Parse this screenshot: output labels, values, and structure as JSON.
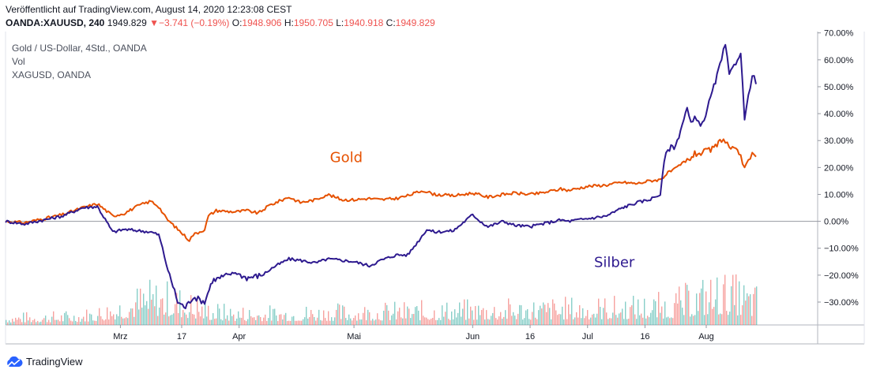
{
  "header": {
    "published": "Veröffentlicht auf TradingView.com, August 14, 2020 12:23:08 CEST",
    "symbol": "OANDA:XAUUSD, 240",
    "last": "1949.829",
    "change": "−3.741 (−0.19%)",
    "o_label": "O:",
    "o_value": "1948.906",
    "h_label": "H:",
    "h_value": "1950.705",
    "l_label": "L:",
    "l_value": "1940.918",
    "c_label": "C:",
    "c_value": "1949.829",
    "change_direction": "down",
    "down_color": "#ef5350"
  },
  "legend": {
    "line1": "Gold  / US-Dollar, 4Std., OANDA",
    "line2": "Vol",
    "line3": "XAGUSD, OANDA"
  },
  "branding": {
    "name": "TradingView",
    "logo_icon": "tradingview-cloud-icon",
    "color": "#2962ff"
  },
  "chart_data": {
    "type": "line",
    "y_unit": "%",
    "ylim": [
      -38.5,
      70.5
    ],
    "y_ticks": [
      "70.00%",
      "60.00%",
      "50.00%",
      "40.00%",
      "30.00%",
      "20.00%",
      "10.00%",
      "0.00%",
      "−10.00%",
      "−20.00%",
      "−30.00%"
    ],
    "y_tick_values": [
      70,
      60,
      50,
      40,
      30,
      20,
      10,
      0,
      -10,
      -20,
      -30
    ],
    "x_range": [
      "2020-01-31",
      "2020-08-14"
    ],
    "x_ticks": [
      {
        "label": "Mrz",
        "date": "2020-03-01"
      },
      {
        "label": "17",
        "date": "2020-03-17"
      },
      {
        "label": "Apr",
        "date": "2020-04-01"
      },
      {
        "label": "Mai",
        "date": "2020-05-01"
      },
      {
        "label": "Jun",
        "date": "2020-06-01"
      },
      {
        "label": "16",
        "date": "2020-06-16"
      },
      {
        "label": "Jul",
        "date": "2020-07-01"
      },
      {
        "label": "16",
        "date": "2020-07-16"
      },
      {
        "label": "Aug",
        "date": "2020-08-01"
      }
    ],
    "grid": false,
    "zero_line": true,
    "series": [
      {
        "name": "Gold",
        "color": "#e65100",
        "points": [
          [
            "2020-01-31",
            0
          ],
          [
            "2020-02-05",
            -0.5
          ],
          [
            "2020-02-10",
            1
          ],
          [
            "2020-02-15",
            2.5
          ],
          [
            "2020-02-20",
            5
          ],
          [
            "2020-02-24",
            6.5
          ],
          [
            "2020-02-28",
            2
          ],
          [
            "2020-03-02",
            3
          ],
          [
            "2020-03-06",
            6
          ],
          [
            "2020-03-09",
            7.5
          ],
          [
            "2020-03-11",
            5.5
          ],
          [
            "2020-03-13",
            1
          ],
          [
            "2020-03-16",
            -3
          ],
          [
            "2020-03-19",
            -7
          ],
          [
            "2020-03-20",
            -5
          ],
          [
            "2020-03-23",
            -3
          ],
          [
            "2020-03-24",
            2
          ],
          [
            "2020-03-26",
            4
          ],
          [
            "2020-03-31",
            3.5
          ],
          [
            "2020-04-03",
            4
          ],
          [
            "2020-04-06",
            3
          ],
          [
            "2020-04-09",
            6
          ],
          [
            "2020-04-14",
            9
          ],
          [
            "2020-04-17",
            7
          ],
          [
            "2020-04-21",
            8
          ],
          [
            "2020-04-24",
            10
          ],
          [
            "2020-04-28",
            8
          ],
          [
            "2020-05-01",
            8
          ],
          [
            "2020-05-05",
            8.5
          ],
          [
            "2020-05-08",
            8
          ],
          [
            "2020-05-12",
            8.5
          ],
          [
            "2020-05-15",
            9.5
          ],
          [
            "2020-05-19",
            11.5
          ],
          [
            "2020-05-22",
            10
          ],
          [
            "2020-05-27",
            9.5
          ],
          [
            "2020-06-01",
            10.5
          ],
          [
            "2020-06-05",
            9
          ],
          [
            "2020-06-09",
            10
          ],
          [
            "2020-06-12",
            10.5
          ],
          [
            "2020-06-16",
            10
          ],
          [
            "2020-06-19",
            10.5
          ],
          [
            "2020-06-24",
            12
          ],
          [
            "2020-06-26",
            11.5
          ],
          [
            "2020-07-01",
            13
          ],
          [
            "2020-07-06",
            13.5
          ],
          [
            "2020-07-10",
            14.5
          ],
          [
            "2020-07-14",
            14
          ],
          [
            "2020-07-17",
            15
          ],
          [
            "2020-07-20",
            15.5
          ],
          [
            "2020-07-22",
            18
          ],
          [
            "2020-07-24",
            19.5
          ],
          [
            "2020-07-27",
            22.5
          ],
          [
            "2020-07-29",
            25
          ],
          [
            "2020-07-31",
            25.5
          ],
          [
            "2020-08-03",
            27
          ],
          [
            "2020-08-05",
            30.5
          ],
          [
            "2020-08-06",
            30
          ],
          [
            "2020-08-07",
            27.5
          ],
          [
            "2020-08-10",
            25
          ],
          [
            "2020-08-11",
            19.5
          ],
          [
            "2020-08-12",
            22
          ],
          [
            "2020-08-13",
            24.5
          ],
          [
            "2020-08-14",
            24
          ]
        ]
      },
      {
        "name": "Silber",
        "color": "#2e1a8f",
        "points": [
          [
            "2020-01-31",
            0
          ],
          [
            "2020-02-05",
            -1
          ],
          [
            "2020-02-10",
            0.5
          ],
          [
            "2020-02-15",
            2
          ],
          [
            "2020-02-20",
            5
          ],
          [
            "2020-02-24",
            5.5
          ],
          [
            "2020-02-28",
            -4
          ],
          [
            "2020-03-02",
            -3
          ],
          [
            "2020-03-06",
            -3.5
          ],
          [
            "2020-03-09",
            -4
          ],
          [
            "2020-03-11",
            -5
          ],
          [
            "2020-03-12",
            -10
          ],
          [
            "2020-03-13",
            -16
          ],
          [
            "2020-03-16",
            -30
          ],
          [
            "2020-03-18",
            -32
          ],
          [
            "2020-03-20",
            -28
          ],
          [
            "2020-03-23",
            -30
          ],
          [
            "2020-03-25",
            -22
          ],
          [
            "2020-03-31",
            -19
          ],
          [
            "2020-04-03",
            -21
          ],
          [
            "2020-04-07",
            -20
          ],
          [
            "2020-04-10",
            -17
          ],
          [
            "2020-04-14",
            -14
          ],
          [
            "2020-04-17",
            -14.5
          ],
          [
            "2020-04-21",
            -15.5
          ],
          [
            "2020-04-24",
            -14
          ],
          [
            "2020-04-28",
            -14.5
          ],
          [
            "2020-05-01",
            -15
          ],
          [
            "2020-05-05",
            -16.5
          ],
          [
            "2020-05-08",
            -14.5
          ],
          [
            "2020-05-12",
            -12.5
          ],
          [
            "2020-05-15",
            -12.5
          ],
          [
            "2020-05-18",
            -7
          ],
          [
            "2020-05-20",
            -3
          ],
          [
            "2020-05-22",
            -4
          ],
          [
            "2020-05-27",
            -3.5
          ],
          [
            "2020-06-01",
            2.5
          ],
          [
            "2020-06-03",
            0
          ],
          [
            "2020-06-05",
            -2
          ],
          [
            "2020-06-09",
            0
          ],
          [
            "2020-06-12",
            -1.5
          ],
          [
            "2020-06-16",
            -2
          ],
          [
            "2020-06-19",
            -1
          ],
          [
            "2020-06-24",
            0.5
          ],
          [
            "2020-06-26",
            0
          ],
          [
            "2020-07-01",
            1
          ],
          [
            "2020-07-06",
            2
          ],
          [
            "2020-07-10",
            5
          ],
          [
            "2020-07-14",
            7
          ],
          [
            "2020-07-17",
            8
          ],
          [
            "2020-07-20",
            10
          ],
          [
            "2020-07-21",
            22
          ],
          [
            "2020-07-22",
            27
          ],
          [
            "2020-07-24",
            28
          ],
          [
            "2020-07-27",
            42
          ],
          [
            "2020-07-28",
            36
          ],
          [
            "2020-07-29",
            38
          ],
          [
            "2020-07-30",
            37
          ],
          [
            "2020-07-31",
            36
          ],
          [
            "2020-08-03",
            50
          ],
          [
            "2020-08-05",
            60
          ],
          [
            "2020-08-06",
            66
          ],
          [
            "2020-08-07",
            54
          ],
          [
            "2020-08-10",
            63
          ],
          [
            "2020-08-11",
            38
          ],
          [
            "2020-08-12",
            46
          ],
          [
            "2020-08-13",
            55
          ],
          [
            "2020-08-14",
            51
          ]
        ]
      }
    ],
    "annotations": [
      {
        "text": "Gold",
        "color": "#e65100",
        "date": "2020-04-29",
        "value": 22
      },
      {
        "text": "Silber",
        "color": "#2e1a8f",
        "date": "2020-07-08",
        "value": -17
      }
    ],
    "volume": {
      "up_color": "#26a69a",
      "down_color": "#ef5350",
      "max_fraction_of_band": 1.0
    }
  }
}
